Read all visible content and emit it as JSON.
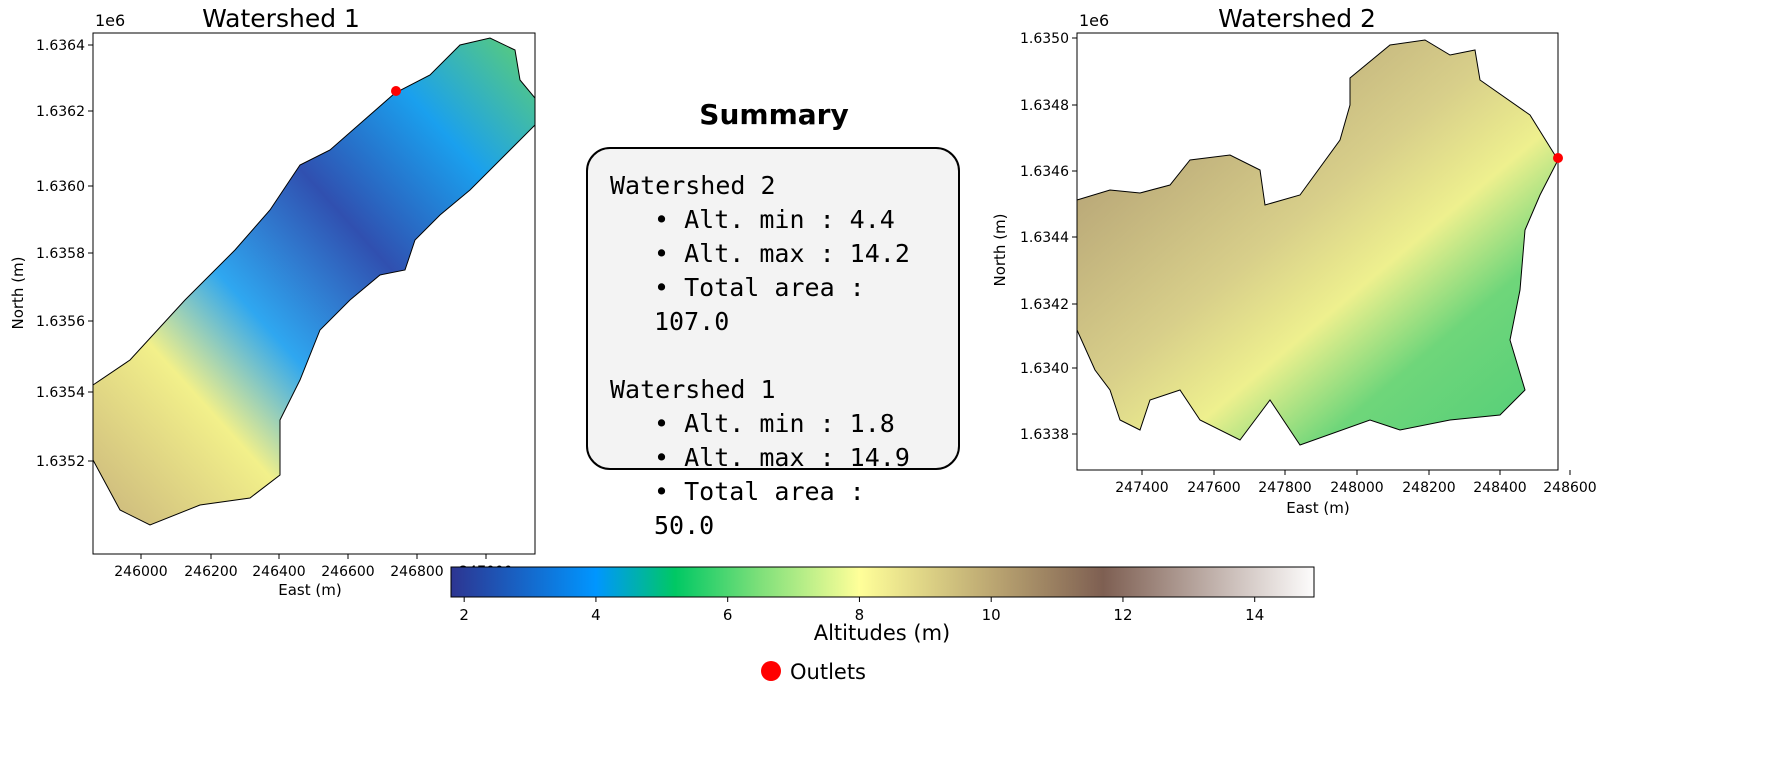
{
  "maps": [
    {
      "title": "Watershed 1",
      "offset_label": "1e6",
      "xlabel": "East (m)",
      "ylabel": "North (m)",
      "yticks": [
        "1.6364",
        "1.6362",
        "1.6360",
        "1.6358",
        "1.6356",
        "1.6354",
        "1.6352"
      ],
      "xticks": [
        "246000",
        "246200",
        "246400",
        "246600",
        "246800",
        "247000"
      ]
    },
    {
      "title": "Watershed 2",
      "offset_label": "1e6",
      "xlabel": "East (m)",
      "ylabel": "North (m)",
      "yticks": [
        "1.6350",
        "1.6348",
        "1.6346",
        "1.6344",
        "1.6342",
        "1.6340",
        "1.6338"
      ],
      "xticks": [
        "247400",
        "247600",
        "247800",
        "248000",
        "248200",
        "248400",
        "248600"
      ]
    }
  ],
  "summary": {
    "title": "Summary",
    "groups": [
      {
        "name": "Watershed 2",
        "items": [
          "• Alt. min : 4.4",
          "• Alt. max : 14.2",
          "• Total area : 107.0"
        ]
      },
      {
        "name": "Watershed 1",
        "items": [
          "• Alt. min : 1.8",
          "• Alt. max : 14.9",
          "• Total area : 50.0"
        ]
      }
    ]
  },
  "colorbar": {
    "label": "Altitudes (m)",
    "ticks": [
      "2",
      "4",
      "6",
      "8",
      "10",
      "12",
      "14"
    ],
    "min": 1.8,
    "max": 14.9,
    "stops": [
      {
        "v": 1.8,
        "c": "#2d3591"
      },
      {
        "v": 4.0,
        "c": "#0096ff"
      },
      {
        "v": 5.2,
        "c": "#00c864"
      },
      {
        "v": 6.5,
        "c": "#7fe07a"
      },
      {
        "v": 8.0,
        "c": "#ffff99"
      },
      {
        "v": 10.0,
        "c": "#bca772"
      },
      {
        "v": 11.7,
        "c": "#7e5f52"
      },
      {
        "v": 14.9,
        "c": "#fdfcfc"
      }
    ]
  },
  "legend": {
    "label": "Outlets",
    "color": "#ff0000"
  }
}
